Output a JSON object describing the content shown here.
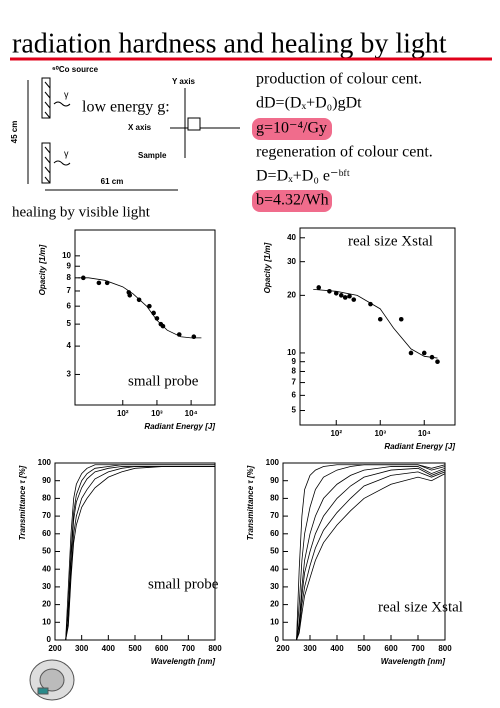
{
  "title": "radiation hardness and healing by light",
  "diagram": {
    "source": "⁶⁰Co source",
    "gamma1": "γ",
    "gamma2": "γ",
    "label": "low energy g:",
    "y_axis": "Y axis",
    "x_axis": "X axis",
    "sample": "Sample",
    "height": "45 cm",
    "width": "61 cm"
  },
  "notes": [
    "production of colour cent.",
    "dD=(Dₓ+D₀)gDt",
    "g=10⁻⁴/Gy",
    "regeneration of colour cent.",
    "D=Dₓ+D₀ e⁻ᵇᶠᵗ",
    "b=4.32/Wh"
  ],
  "section": "healing by visible light",
  "chart_data": [
    {
      "type": "scatter",
      "annotation": "small probe",
      "xlabel": "Radiant Energy [J]",
      "ylabel": "Opacity [1/m]",
      "xscale": "log",
      "yscale": "log",
      "xlim": [
        4,
        50000
      ],
      "ylim": [
        2.2,
        13
      ],
      "xticks": [
        {
          "value": 100,
          "label": "10²"
        },
        {
          "value": 1000,
          "label": "10³"
        },
        {
          "value": 10000,
          "label": "10⁴"
        }
      ],
      "yticks": [
        3,
        4,
        5,
        6,
        7,
        8,
        9,
        10
      ],
      "series": [
        {
          "style": "marker",
          "color": "#000000",
          "x": [
            7,
            20,
            35,
            150,
            160,
            300,
            600,
            800,
            1000,
            1300,
            1500,
            4500,
            12000
          ],
          "values": [
            8.0,
            7.6,
            7.6,
            6.9,
            6.7,
            6.4,
            6.0,
            5.6,
            5.3,
            5.0,
            4.9,
            4.5,
            4.4
          ]
        },
        {
          "style": "line",
          "color": "#000000",
          "x": [
            5,
            10,
            30,
            100,
            200,
            500,
            1000,
            2000,
            5000,
            10000,
            20000
          ],
          "values": [
            8.0,
            8.0,
            7.8,
            7.3,
            6.8,
            6.0,
            5.2,
            4.7,
            4.4,
            4.35,
            4.35
          ]
        }
      ]
    },
    {
      "type": "scatter",
      "annotation": "real size Xstal",
      "xlabel": "Radiant Energy [J]",
      "ylabel": "Opacity [1/m]",
      "xscale": "log",
      "yscale": "log",
      "xlim": [
        15,
        50000
      ],
      "ylim": [
        4.2,
        45
      ],
      "xticks": [
        {
          "value": 100,
          "label": "10²"
        },
        {
          "value": 1000,
          "label": "10³"
        },
        {
          "value": 10000,
          "label": "10⁴"
        }
      ],
      "yticks": [
        5,
        6,
        7,
        8,
        9,
        10,
        20,
        30,
        40
      ],
      "series": [
        {
          "style": "marker",
          "color": "#000000",
          "x": [
            40,
            70,
            100,
            130,
            160,
            200,
            250,
            600,
            1000,
            3000,
            5000,
            10000,
            15000,
            20000
          ],
          "values": [
            22,
            21,
            20.5,
            20,
            19.5,
            19.8,
            19,
            18,
            15,
            15,
            10,
            10,
            9.5,
            9
          ]
        },
        {
          "style": "line",
          "color": "#000000",
          "x": [
            30,
            100,
            300,
            1000,
            2000,
            5000,
            10000,
            20000
          ],
          "values": [
            21.5,
            21,
            20,
            17,
            13.5,
            10.5,
            9.6,
            9.4
          ]
        }
      ]
    },
    {
      "type": "line",
      "annotation": "small probe",
      "xlabel": "Wavelength [nm]",
      "ylabel": "Transmittance τ [%]",
      "xlim": [
        200,
        800
      ],
      "ylim": [
        0,
        100
      ],
      "xticks": [
        200,
        300,
        400,
        500,
        600,
        700,
        800
      ],
      "yticks": [
        0,
        10,
        20,
        30,
        40,
        50,
        60,
        70,
        80,
        90,
        100
      ],
      "x": [
        240,
        250,
        260,
        270,
        280,
        300,
        320,
        350,
        400,
        450,
        500,
        600,
        700,
        800
      ],
      "series": [
        {
          "color": "#000000",
          "values": [
            0,
            30,
            60,
            80,
            88,
            94,
            97,
            99,
            99,
            99,
            99,
            99,
            99,
            99
          ]
        },
        {
          "color": "#000000",
          "values": [
            0,
            20,
            50,
            72,
            82,
            90,
            94,
            97,
            98,
            99,
            99,
            99,
            99,
            99
          ]
        },
        {
          "color": "#000000",
          "values": [
            0,
            15,
            45,
            68,
            78,
            86,
            91,
            95,
            97,
            98,
            98,
            98,
            98,
            98
          ]
        },
        {
          "color": "#000000",
          "values": [
            0,
            10,
            38,
            60,
            70,
            80,
            85,
            91,
            95,
            97,
            98,
            98,
            98,
            98
          ]
        },
        {
          "color": "#000000",
          "values": [
            0,
            8,
            35,
            55,
            65,
            75,
            80,
            86,
            92,
            95,
            97,
            98,
            98,
            98
          ]
        }
      ]
    },
    {
      "type": "line",
      "annotation": "real size Xstal",
      "xlabel": "Wavelength [nm]",
      "ylabel": "Transmittance τ [%]",
      "xlim": [
        200,
        800
      ],
      "ylim": [
        0,
        100
      ],
      "xticks": [
        200,
        300,
        400,
        500,
        600,
        700,
        800
      ],
      "yticks": [
        0,
        10,
        20,
        30,
        40,
        50,
        60,
        70,
        80,
        90,
        100
      ],
      "x": [
        250,
        260,
        270,
        280,
        300,
        320,
        350,
        400,
        450,
        500,
        600,
        700,
        750,
        800
      ],
      "series": [
        {
          "color": "#000000",
          "values": [
            0,
            40,
            70,
            85,
            93,
            96,
            98,
            99,
            99,
            99,
            99,
            99,
            97,
            99
          ]
        },
        {
          "color": "#000000",
          "values": [
            0,
            20,
            45,
            60,
            75,
            85,
            92,
            96,
            98,
            99,
            99,
            99,
            96,
            98
          ]
        },
        {
          "color": "#000000",
          "values": [
            0,
            10,
            30,
            45,
            60,
            70,
            80,
            88,
            93,
            96,
            98,
            98,
            94,
            97
          ]
        },
        {
          "color": "#000000",
          "values": [
            0,
            8,
            25,
            38,
            50,
            60,
            70,
            80,
            87,
            92,
            96,
            97,
            93,
            96
          ]
        },
        {
          "color": "#000000",
          "values": [
            0,
            5,
            20,
            30,
            42,
            52,
            62,
            72,
            80,
            87,
            93,
            95,
            92,
            95
          ]
        },
        {
          "color": "#000000",
          "values": [
            0,
            4,
            15,
            25,
            35,
            45,
            55,
            65,
            73,
            80,
            88,
            92,
            90,
            94
          ]
        }
      ]
    }
  ]
}
